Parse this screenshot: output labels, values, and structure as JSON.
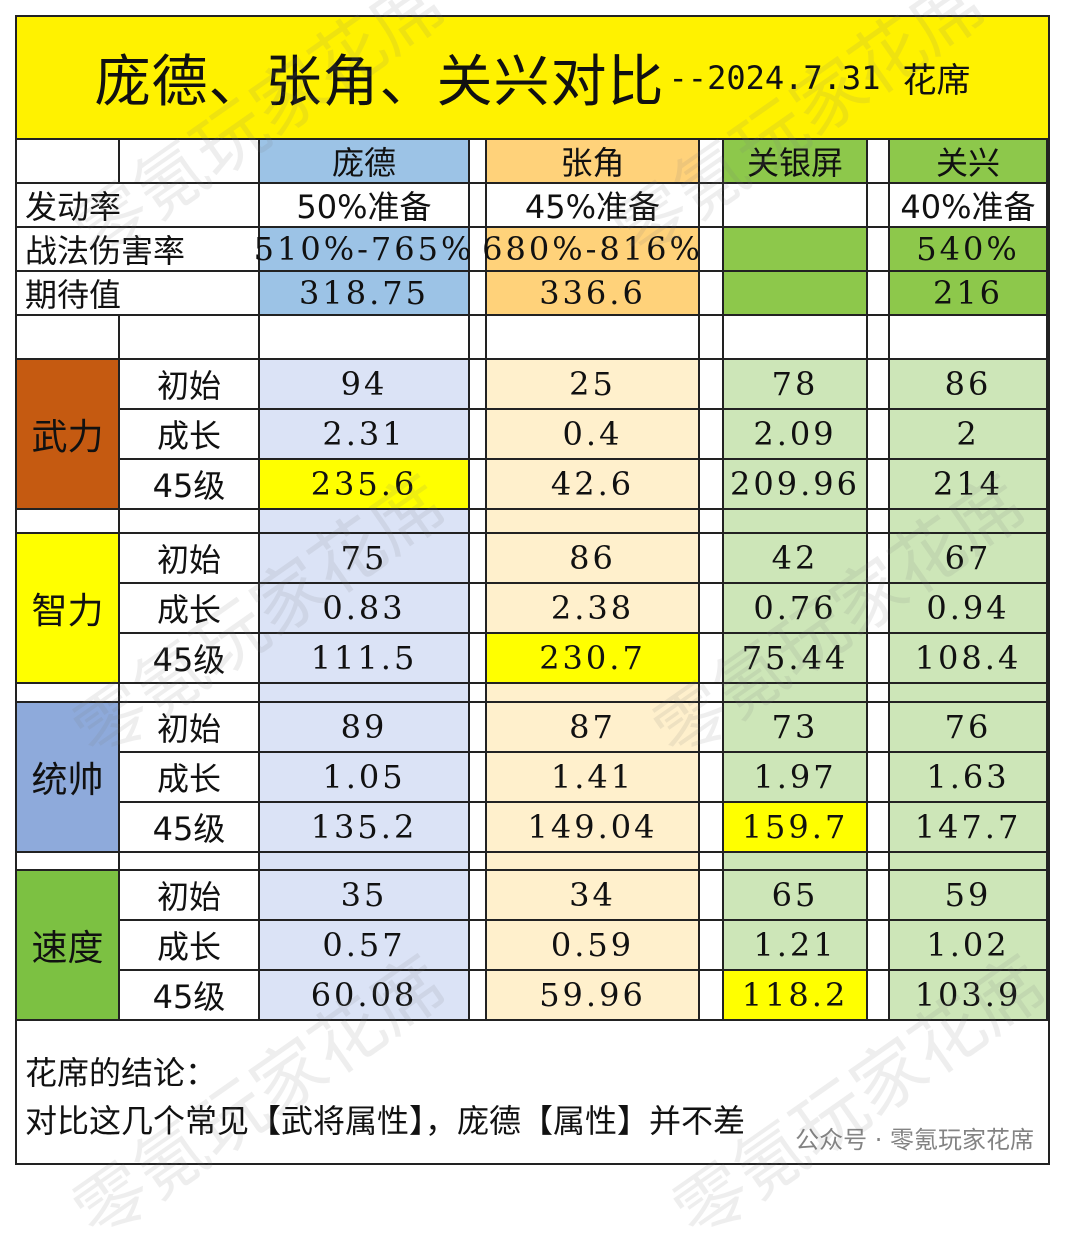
{
  "title": {
    "main": "庞德、张角、关兴对比",
    "sub": "--2024.7.31",
    "author": "花席"
  },
  "header": [
    "庞德",
    "张角",
    "关银屏",
    "关兴"
  ],
  "meta_rows": [
    {
      "label": "发动率",
      "values": [
        "50%准备",
        "45%准备",
        "",
        "40%准备"
      ]
    },
    {
      "label": "战法伤害率",
      "values": [
        "510%-765%",
        "680%-816%",
        "",
        "540%"
      ]
    },
    {
      "label": "期待值",
      "values": [
        "318.75",
        "336.6",
        "",
        "216"
      ]
    }
  ],
  "sections": [
    {
      "name": "武力",
      "color": "#c55a11",
      "rows": [
        {
          "label": "初始",
          "values": [
            "94",
            "25",
            "78",
            "86"
          ]
        },
        {
          "label": "成长",
          "values": [
            "2.31",
            "0.4",
            "2.09",
            "2"
          ]
        },
        {
          "label": "45级",
          "values": [
            "235.6",
            "42.6",
            "209.96",
            "214"
          ],
          "highlight": 0
        }
      ]
    },
    {
      "name": "智力",
      "color": "#ffff00",
      "rows": [
        {
          "label": "初始",
          "values": [
            "75",
            "86",
            "42",
            "67"
          ]
        },
        {
          "label": "成长",
          "values": [
            "0.83",
            "2.38",
            "0.76",
            "0.94"
          ]
        },
        {
          "label": "45级",
          "values": [
            "111.5",
            "230.7",
            "75.44",
            "108.4"
          ],
          "highlight": 1
        }
      ]
    },
    {
      "name": "统帅",
      "color": "#8eaadb",
      "rows": [
        {
          "label": "初始",
          "values": [
            "89",
            "87",
            "73",
            "76"
          ]
        },
        {
          "label": "成长",
          "values": [
            "1.05",
            "1.41",
            "1.97",
            "1.63"
          ]
        },
        {
          "label": "45级",
          "values": [
            "135.2",
            "149.04",
            "159.7",
            "147.7"
          ],
          "highlight": 2
        }
      ]
    },
    {
      "name": "速度",
      "color": "#7cc142",
      "rows": [
        {
          "label": "初始",
          "values": [
            "35",
            "34",
            "65",
            "59"
          ]
        },
        {
          "label": "成长",
          "values": [
            "0.57",
            "0.59",
            "1.21",
            "1.02"
          ]
        },
        {
          "label": "45级",
          "values": [
            "60.08",
            "59.96",
            "118.2",
            "103.9"
          ],
          "highlight": 2
        }
      ]
    }
  ],
  "conclusion": {
    "heading": "花席的结论：",
    "text": "对比这几个常见【武将属性】，庞德【属性】并不差"
  },
  "watermark_text": "零氪玩家花席",
  "wechat_tag": "公众号 · 零氪玩家花席"
}
